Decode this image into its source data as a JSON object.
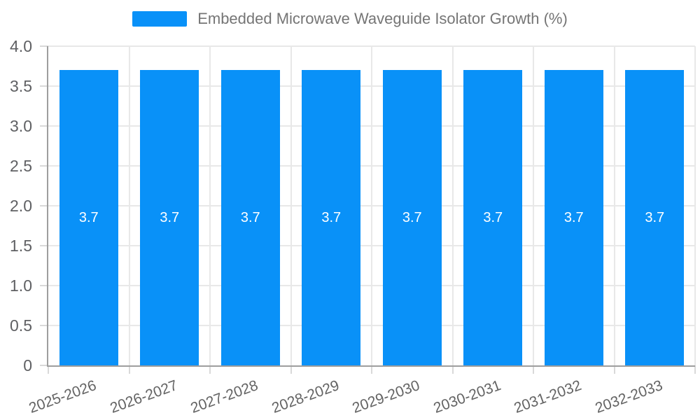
{
  "legend": {
    "label": "Embedded Microwave Waveguide Isolator Growth (%)"
  },
  "chart_data": {
    "type": "bar",
    "title": "Embedded Microwave Waveguide Isolator Growth (%)",
    "categories": [
      "2025-2026",
      "2026-2027",
      "2027-2028",
      "2028-2029",
      "2029-2030",
      "2030-2031",
      "2031-2032",
      "2032-2033"
    ],
    "series": [
      {
        "name": "Embedded Microwave Waveguide Isolator Growth (%)",
        "values": [
          3.7,
          3.7,
          3.7,
          3.7,
          3.7,
          3.7,
          3.7,
          3.7
        ]
      }
    ],
    "bar_labels": [
      "3.7",
      "3.7",
      "3.7",
      "3.7",
      "3.7",
      "3.7",
      "3.7",
      "3.7"
    ],
    "xlabel": "",
    "ylabel": "",
    "ylim": [
      0,
      4.0
    ],
    "ytick_values": [
      0,
      0.5,
      1.0,
      1.5,
      2.0,
      2.5,
      3.0,
      3.5,
      4.0
    ],
    "ytick_labels": [
      "0",
      "0.5",
      "1.0",
      "1.5",
      "2.0",
      "2.5",
      "3.0",
      "3.5",
      "4.0"
    ],
    "grid": true,
    "legend_position": "top-center",
    "colors": {
      "bar": "#0991f8",
      "bar_value_text": "#ffffff",
      "axis_line": "#9e9e9e",
      "grid_line": "#e8e8e8",
      "tick_mark": "#d9d9d9",
      "ytick_text": "#5f6063",
      "xtick_text": "#636363",
      "legend_text": "#757575",
      "background": "#ffffff"
    }
  }
}
